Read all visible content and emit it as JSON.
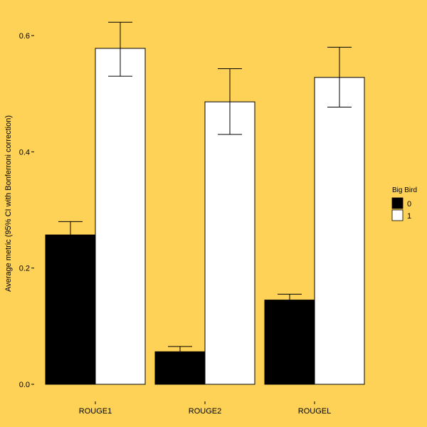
{
  "chart_data": {
    "type": "bar",
    "title": "",
    "xlabel": "",
    "ylabel": "Average metric (95% CI with Bonferroni correction)",
    "categories": [
      "ROUGE1",
      "ROUGE2",
      "ROUGEL"
    ],
    "ylim": [
      0,
      0.62
    ],
    "yticks": [
      0.0,
      0.2,
      0.4,
      0.6
    ],
    "ytick_labels": [
      "0.0",
      "0.2",
      "0.4",
      "0.6"
    ],
    "grid": false,
    "legend": {
      "title": "Big Bird",
      "placement": "right"
    },
    "series": [
      {
        "name": "0",
        "color": "#000000",
        "values": [
          0.257,
          0.056,
          0.145
        ],
        "error_low": [
          0.24,
          0.048,
          0.138
        ],
        "error_high": [
          0.28,
          0.065,
          0.155
        ]
      },
      {
        "name": "1",
        "color": "#ffffff",
        "values": [
          0.578,
          0.486,
          0.528
        ],
        "error_low": [
          0.53,
          0.43,
          0.477
        ],
        "error_high": [
          0.623,
          0.543,
          0.58
        ]
      }
    ],
    "background_color": "#fed257"
  }
}
